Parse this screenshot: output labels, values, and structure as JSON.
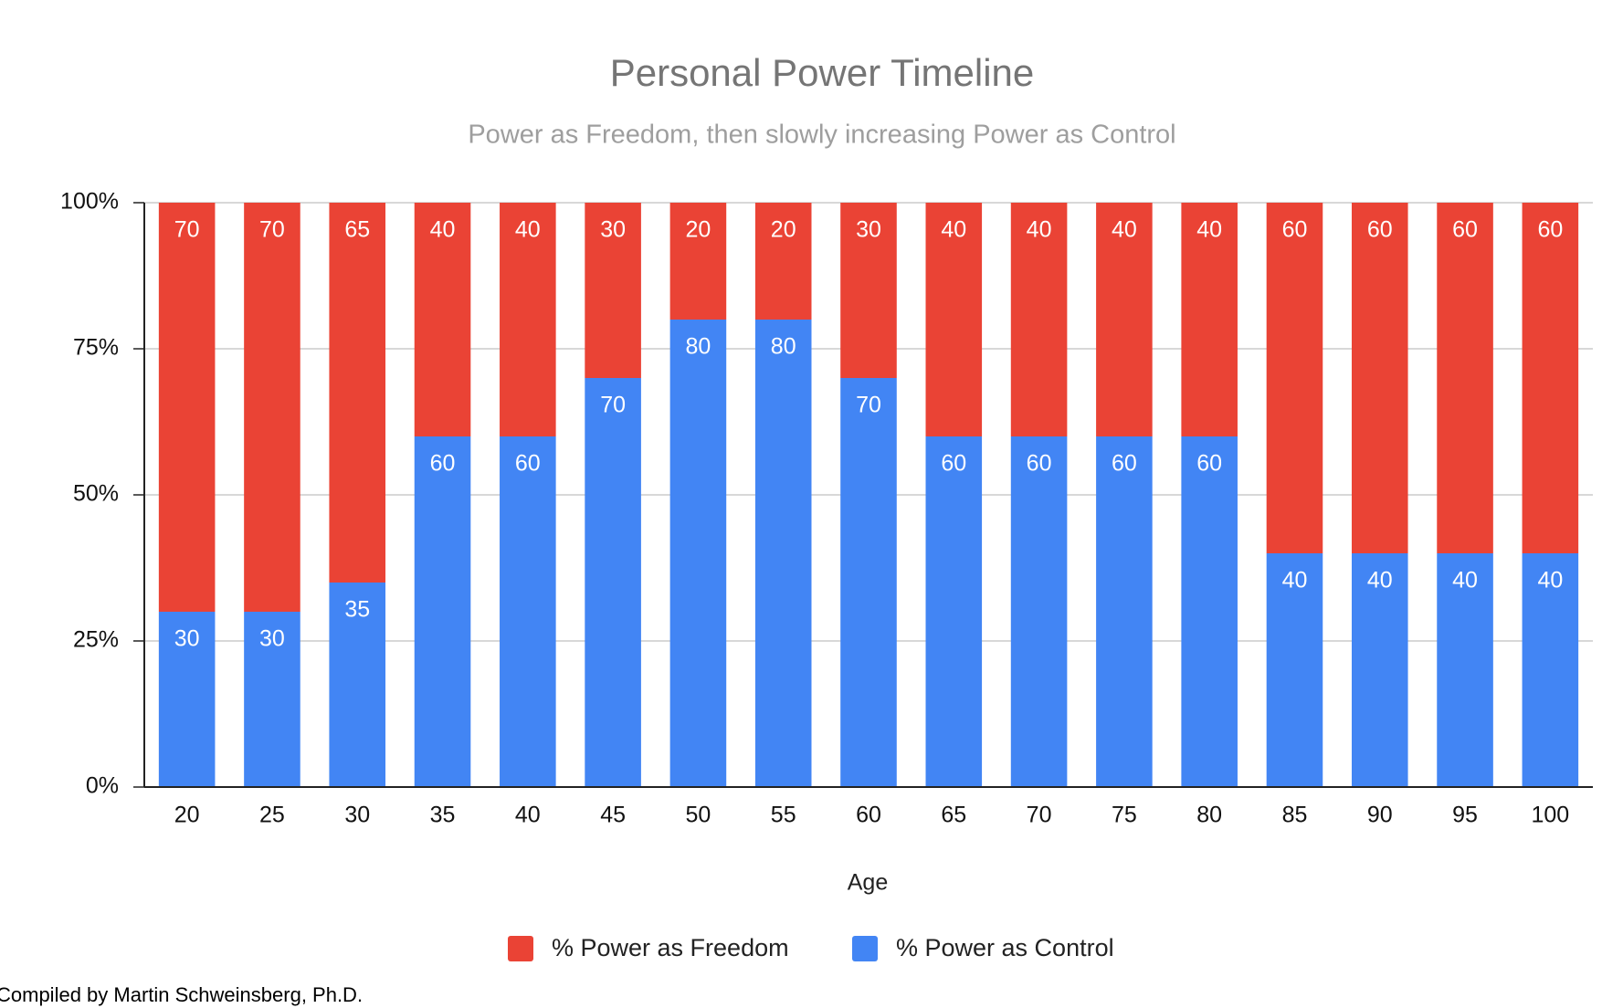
{
  "chart_data": {
    "type": "stacked_bar",
    "title": "Personal Power Timeline",
    "subtitle": "Power as Freedom, then slowly increasing Power as Control",
    "x_label": "Age",
    "footnote": "Compiled by Martin Schweinsberg, Ph.D.",
    "categories": [
      "20",
      "25",
      "30",
      "35",
      "40",
      "45",
      "50",
      "55",
      "60",
      "65",
      "70",
      "75",
      "80",
      "85",
      "90",
      "95",
      "100"
    ],
    "series": [
      {
        "name": "% Power as Freedom",
        "color": "#ea4335",
        "values": [
          70,
          70,
          65,
          40,
          40,
          30,
          20,
          20,
          30,
          40,
          40,
          40,
          40,
          60,
          60,
          60,
          60
        ]
      },
      {
        "name": "% Power as Control",
        "color": "#4285f4",
        "values": [
          30,
          30,
          35,
          60,
          60,
          70,
          80,
          80,
          70,
          60,
          60,
          60,
          60,
          40,
          40,
          40,
          40
        ]
      }
    ],
    "ylim": [
      0,
      100
    ],
    "yticks": [
      {
        "value": 0,
        "label": "0%"
      },
      {
        "value": 25,
        "label": "25%"
      },
      {
        "value": 50,
        "label": "50%"
      },
      {
        "value": 75,
        "label": "75%"
      },
      {
        "value": 100,
        "label": "100%"
      }
    ],
    "grid": true,
    "legend": "bottom"
  }
}
